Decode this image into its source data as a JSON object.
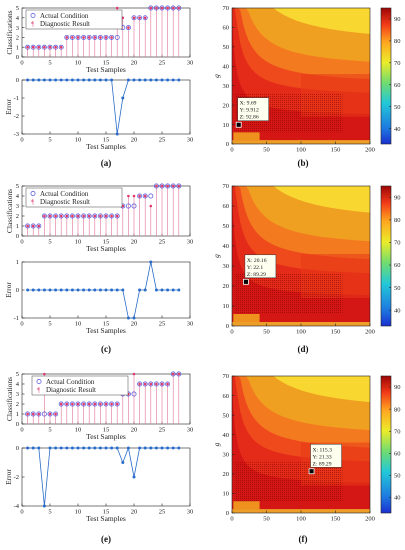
{
  "panel_labels": [
    "(a)",
    "(b)",
    "(c)",
    "(d)",
    "(e)",
    "(f)"
  ],
  "chart_data": [
    {
      "type": "scatter",
      "panel": "(a)",
      "xlabel": "Test Samples",
      "ylabel": "Classifications",
      "xlim": [
        0,
        30
      ],
      "ylim": [
        0,
        5
      ],
      "xticks": [
        0,
        5,
        10,
        15,
        20,
        25,
        30
      ],
      "yticks": [
        0,
        1,
        2,
        3,
        4,
        5
      ],
      "legend": "top-left",
      "x": [
        1,
        2,
        3,
        4,
        5,
        6,
        7,
        8,
        9,
        10,
        11,
        12,
        13,
        14,
        15,
        16,
        17,
        18,
        19,
        20,
        21,
        22,
        23,
        24,
        25,
        26,
        27,
        28
      ],
      "series": [
        {
          "name": "Actual Condition",
          "values": [
            1,
            1,
            1,
            1,
            1,
            1,
            1,
            2,
            2,
            2,
            2,
            2,
            2,
            2,
            2,
            2,
            2,
            3,
            3,
            4,
            4,
            4,
            5,
            5,
            5,
            5,
            5,
            5
          ]
        },
        {
          "name": "Diagnostic Result",
          "values": [
            1,
            1,
            1,
            1,
            1,
            1,
            1,
            2,
            2,
            2,
            2,
            2,
            2,
            2,
            2,
            2,
            5,
            4,
            3,
            4,
            4,
            4,
            5,
            5,
            5,
            5,
            5,
            5
          ]
        }
      ]
    },
    {
      "type": "line",
      "panel": "(a)",
      "xlabel": "Test Samples",
      "ylabel": "Error",
      "xlim": [
        0,
        30
      ],
      "ylim": [
        -3,
        0
      ],
      "xticks": [
        0,
        5,
        10,
        15,
        20,
        25,
        30
      ],
      "yticks": [
        -3,
        -2,
        -1,
        0
      ],
      "x": [
        1,
        2,
        3,
        4,
        5,
        6,
        7,
        8,
        9,
        10,
        11,
        12,
        13,
        14,
        15,
        16,
        17,
        18,
        19,
        20,
        21,
        22,
        23,
        24,
        25,
        26,
        27,
        28
      ],
      "values": [
        0,
        0,
        0,
        0,
        0,
        0,
        0,
        0,
        0,
        0,
        0,
        0,
        0,
        0,
        0,
        0,
        -3,
        -1,
        0,
        0,
        0,
        0,
        0,
        0,
        0,
        0,
        0,
        0
      ]
    },
    {
      "type": "heatmap",
      "panel": "(b)",
      "ylabel": "g",
      "xlim": [
        0,
        200
      ],
      "ylim": [
        0,
        70
      ],
      "xticks": [
        0,
        50,
        100,
        150,
        200
      ],
      "yticks": [
        0,
        10,
        20,
        30,
        40,
        50,
        60,
        70
      ],
      "colorbar_ticks": [
        40,
        50,
        60,
        70,
        80,
        90
      ],
      "colorbar_range": [
        33,
        95
      ],
      "marker": {
        "x": 9.69,
        "y": 9.912,
        "z": 92.86
      },
      "datatip": [
        "X: 9.69",
        "Y: 9.912",
        "Z: 92.86"
      ]
    },
    {
      "type": "scatter",
      "panel": "(c)",
      "xlabel": "Test Samples",
      "ylabel": "Classifications",
      "xlim": [
        0,
        30
      ],
      "ylim": [
        0,
        5
      ],
      "xticks": [
        0,
        5,
        10,
        15,
        20,
        25,
        30
      ],
      "yticks": [
        0,
        1,
        2,
        3,
        4,
        5
      ],
      "legend": "top-left",
      "x": [
        1,
        2,
        3,
        4,
        5,
        6,
        7,
        8,
        9,
        10,
        11,
        12,
        13,
        14,
        15,
        16,
        17,
        18,
        19,
        20,
        21,
        22,
        23,
        24,
        25,
        26,
        27,
        28
      ],
      "series": [
        {
          "name": "Actual Condition",
          "values": [
            1,
            1,
            1,
            2,
            2,
            2,
            2,
            2,
            2,
            2,
            2,
            2,
            2,
            2,
            2,
            2,
            2,
            3,
            3,
            3,
            4,
            4,
            4,
            5,
            5,
            5,
            5,
            5
          ]
        },
        {
          "name": "Diagnostic Result",
          "values": [
            1,
            1,
            1,
            2,
            2,
            2,
            2,
            2,
            2,
            2,
            2,
            2,
            2,
            2,
            2,
            2,
            2,
            3,
            4,
            4,
            4,
            4,
            3,
            5,
            5,
            5,
            5,
            5
          ]
        }
      ]
    },
    {
      "type": "line",
      "panel": "(c)",
      "xlabel": "Test Samples",
      "ylabel": "Error",
      "xlim": [
        0,
        30
      ],
      "ylim": [
        -1,
        1
      ],
      "xticks": [
        0,
        5,
        10,
        15,
        20,
        25,
        30
      ],
      "yticks": [
        -1,
        0,
        1
      ],
      "x": [
        1,
        2,
        3,
        4,
        5,
        6,
        7,
        8,
        9,
        10,
        11,
        12,
        13,
        14,
        15,
        16,
        17,
        18,
        19,
        20,
        21,
        22,
        23,
        24,
        25,
        26,
        27,
        28
      ],
      "values": [
        0,
        0,
        0,
        0,
        0,
        0,
        0,
        0,
        0,
        0,
        0,
        0,
        0,
        0,
        0,
        0,
        0,
        0,
        -1,
        -1,
        0,
        0,
        1,
        0,
        0,
        0,
        0,
        0
      ]
    },
    {
      "type": "heatmap",
      "panel": "(d)",
      "ylabel": "g",
      "xlim": [
        0,
        200
      ],
      "ylim": [
        0,
        70
      ],
      "xticks": [
        0,
        50,
        100,
        150,
        200
      ],
      "yticks": [
        0,
        10,
        20,
        30,
        40,
        50,
        60,
        70
      ],
      "colorbar_ticks": [
        40,
        50,
        60,
        70,
        80,
        90
      ],
      "colorbar_range": [
        33,
        95
      ],
      "marker": {
        "x": 20.16,
        "y": 22.1,
        "z": 89.29
      },
      "datatip": [
        "X: 20.16",
        "Y: 22.1",
        "Z: 89.29"
      ]
    },
    {
      "type": "scatter",
      "panel": "(e)",
      "xlabel": "Test Samples",
      "ylabel": "Classifications",
      "xlim": [
        0,
        30
      ],
      "ylim": [
        0,
        5
      ],
      "xticks": [
        0,
        5,
        10,
        15,
        20,
        25,
        30
      ],
      "yticks": [
        0,
        1,
        2,
        3,
        4,
        5
      ],
      "legend": "top-right",
      "x": [
        1,
        2,
        3,
        4,
        5,
        6,
        7,
        8,
        9,
        10,
        11,
        12,
        13,
        14,
        15,
        16,
        17,
        18,
        19,
        20,
        21,
        22,
        23,
        24,
        25,
        26,
        27,
        28
      ],
      "series": [
        {
          "name": "Actual Condition",
          "values": [
            1,
            1,
            1,
            1,
            1,
            1,
            2,
            2,
            2,
            2,
            2,
            2,
            2,
            2,
            2,
            2,
            2,
            3,
            3,
            3,
            4,
            4,
            4,
            4,
            4,
            4,
            5,
            5
          ]
        },
        {
          "name": "Diagnostic Result",
          "values": [
            1,
            1,
            1,
            5,
            1,
            1,
            2,
            2,
            2,
            2,
            2,
            2,
            2,
            2,
            2,
            2,
            2,
            4,
            3,
            5,
            4,
            4,
            4,
            4,
            4,
            4,
            5,
            5
          ]
        }
      ]
    },
    {
      "type": "line",
      "panel": "(e)",
      "xlabel": "Test Samples",
      "ylabel": "Error",
      "xlim": [
        0,
        30
      ],
      "ylim": [
        -4,
        0
      ],
      "xticks": [
        0,
        5,
        10,
        15,
        20,
        25,
        30
      ],
      "yticks": [
        -4,
        -2,
        0
      ],
      "x": [
        1,
        2,
        3,
        4,
        5,
        6,
        7,
        8,
        9,
        10,
        11,
        12,
        13,
        14,
        15,
        16,
        17,
        18,
        19,
        20,
        21,
        22,
        23,
        24,
        25,
        26,
        27,
        28
      ],
      "values": [
        0,
        0,
        0,
        -4,
        0,
        0,
        0,
        0,
        0,
        0,
        0,
        0,
        0,
        0,
        0,
        0,
        0,
        -1,
        0,
        -2,
        0,
        0,
        0,
        0,
        0,
        0,
        0,
        0
      ]
    },
    {
      "type": "heatmap",
      "panel": "(f)",
      "ylabel": "g",
      "xlim": [
        0,
        200
      ],
      "ylim": [
        0,
        70
      ],
      "xticks": [
        0,
        50,
        100,
        150,
        200
      ],
      "yticks": [
        0,
        10,
        20,
        30,
        40,
        50,
        60,
        70
      ],
      "colorbar_ticks": [
        40,
        50,
        60,
        70,
        80,
        90
      ],
      "colorbar_range": [
        33,
        95
      ],
      "marker": {
        "x": 115.3,
        "y": 21.33,
        "z": 89.29
      },
      "datatip": [
        "X: 115.3",
        "Y: 21.33",
        "Z: 89.29"
      ]
    }
  ]
}
